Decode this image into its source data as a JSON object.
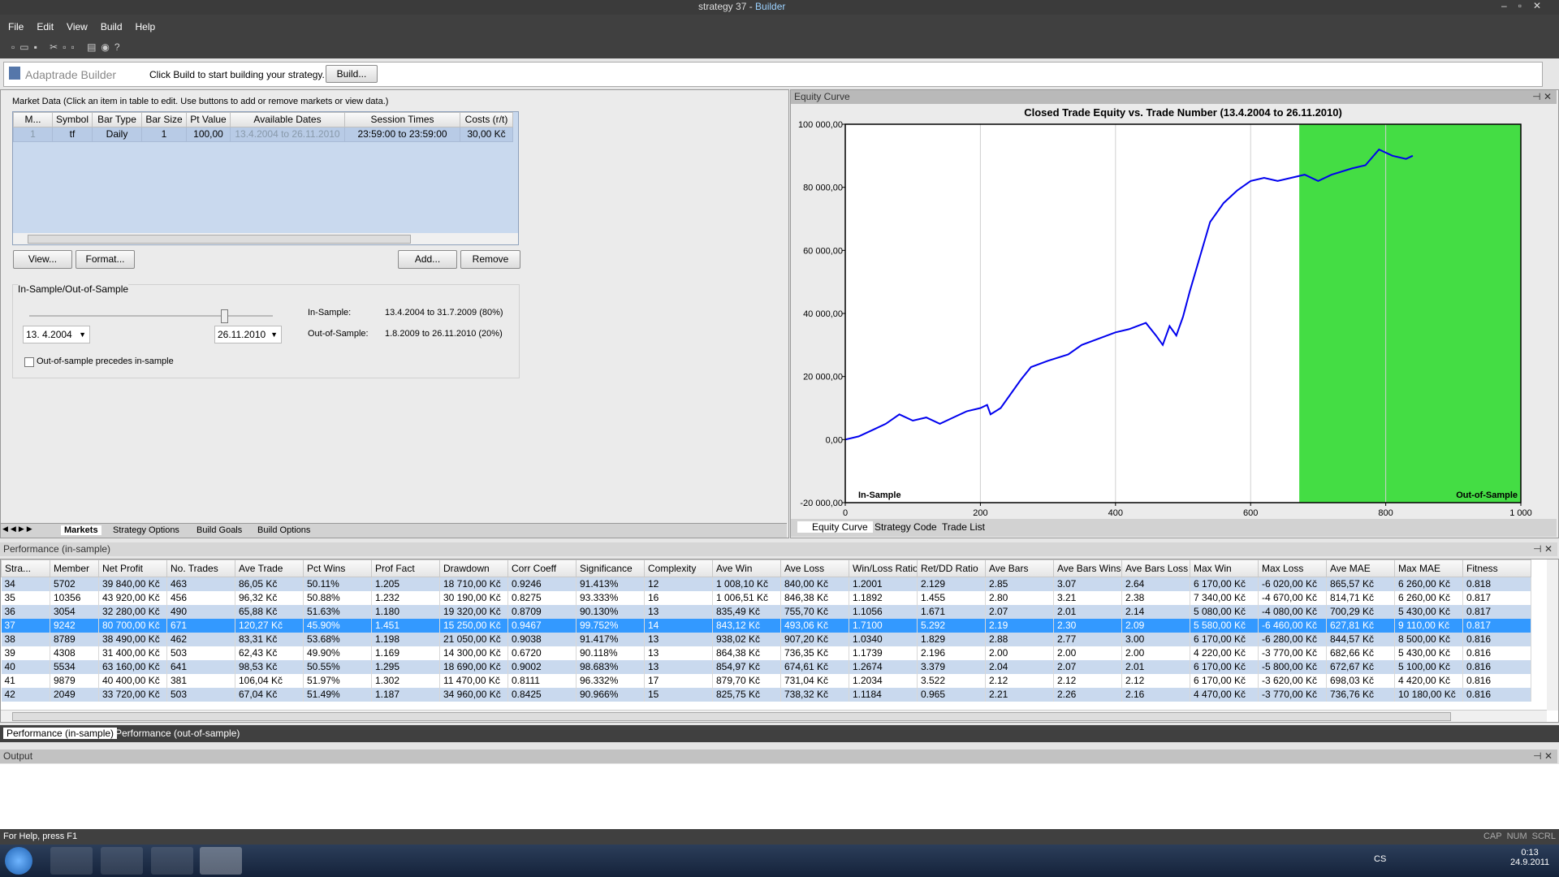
{
  "window": {
    "title": "strategy 37",
    "app": "Builder"
  },
  "menu": [
    "File",
    "Edit",
    "View",
    "Build",
    "Help"
  ],
  "toolbar": {
    "brand": "Adaptrade Builder",
    "hint": "Click Build to start building your strategy.",
    "button": "Build..."
  },
  "market": {
    "caption": "Market Data (Click an item in table to edit. Use buttons to add or remove markets or view data.)",
    "columns": [
      "M...",
      "Symbol",
      "Bar Type",
      "Bar Size",
      "Pt Value",
      "Available Dates",
      "Session Times",
      "Costs (r/t)"
    ],
    "rows": [
      [
        "1",
        "tf",
        "Daily",
        "1",
        "100,00",
        "13.4.2004 to 26.11.2010",
        "23:59:00 to 23:59:00",
        "30,00 Kč"
      ]
    ],
    "buttons": [
      "View...",
      "Format...",
      "Add...",
      "Remove"
    ]
  },
  "sample": {
    "title": "In-Sample/Out-of-Sample",
    "start": "13. 4.2004",
    "end": "26.11.2010",
    "in_label": "In-Sample:",
    "in_value": "13.4.2004 to 31.7.2009 (80%)",
    "out_label": "Out-of-Sample:",
    "out_value": "1.8.2009 to 26.11.2010 (20%)",
    "checkbox": "Out-of-sample precedes in-sample"
  },
  "left_tabs": [
    "Markets",
    "Strategy Options",
    "Build Goals",
    "Build Options"
  ],
  "chart_panel": {
    "title": "Equity Curve",
    "tabs": [
      "Equity Curve",
      "Strategy Code",
      "Trade List"
    ]
  },
  "chart_data": {
    "type": "line",
    "title": "Closed Trade Equity vs. Trade Number (13.4.2004 to 26.11.2010)",
    "x": [
      0,
      20,
      40,
      60,
      80,
      100,
      120,
      140,
      160,
      180,
      200,
      210,
      215,
      230,
      260,
      275,
      300,
      330,
      350,
      375,
      400,
      420,
      445,
      460,
      470,
      480,
      490,
      500,
      510,
      525,
      540,
      560,
      580,
      600,
      620,
      640,
      660,
      680,
      700,
      720,
      750,
      770,
      790,
      810,
      830,
      840
    ],
    "series": [
      {
        "color": "#0000ee",
        "values": [
          0,
          1000,
          3000,
          5000,
          8000,
          6000,
          7000,
          5000,
          7000,
          9000,
          10000,
          11000,
          8000,
          10000,
          19000,
          23000,
          25000,
          27000,
          30000,
          32000,
          34000,
          35000,
          37000,
          33000,
          30000,
          36000,
          33000,
          39000,
          47000,
          58000,
          69000,
          75000,
          79000,
          82000,
          83000,
          82000,
          83000,
          84000,
          82000,
          84000,
          86000,
          87000,
          92000,
          90000,
          89000,
          90000
        ]
      }
    ],
    "xlim": [
      0,
      1000
    ],
    "ylim": [
      -20000,
      100000
    ],
    "xticks": [
      0,
      200,
      400,
      600,
      800,
      {
        "value": 1000,
        "label": "1 000"
      }
    ],
    "yticks": [
      {
        "value": -20000,
        "label": "-20 000,00"
      },
      {
        "value": 0,
        "label": "0,00"
      },
      {
        "value": 20000,
        "label": "20 000,00"
      },
      {
        "value": 40000,
        "label": "40 000,00"
      },
      {
        "value": 60000,
        "label": "60 000,00"
      },
      {
        "value": 80000,
        "label": "80 000,00"
      },
      {
        "value": 100000,
        "label": "100 000,00"
      }
    ],
    "grid": "x",
    "out_of_sample_start": 672,
    "out_of_sample_color": "#44dd44",
    "annotations": [
      "In-Sample",
      "Out-of-Sample"
    ]
  },
  "performance": {
    "title": "Performance (in-sample)",
    "selected": 3,
    "columns": [
      "Stra...",
      "Member",
      "Net Profit",
      "No. Trades",
      "Ave Trade",
      "Pct Wins",
      "Prof Fact",
      "Drawdown",
      "Corr Coeff",
      "Significance",
      "Complexity",
      "Ave Win",
      "Ave Loss",
      "Win/Loss Ratio",
      "Ret/DD Ratio",
      "Ave Bars",
      "Ave Bars Wins",
      "Ave Bars Loss",
      "Max Win",
      "Max Loss",
      "Ave MAE",
      "Max MAE",
      "Fitness"
    ],
    "rows": [
      [
        "34",
        "5702",
        "39 840,00 Kč",
        "463",
        "86,05 Kč",
        "50.11%",
        "1.205",
        "18 710,00 Kč",
        "0.9246",
        "91.413%",
        "12",
        "1 008,10 Kč",
        "840,00 Kč",
        "1.2001",
        "2.129",
        "2.85",
        "3.07",
        "2.64",
        "6 170,00 Kč",
        "-6 020,00 Kč",
        "865,57 Kč",
        "6 260,00 Kč",
        "0.818"
      ],
      [
        "35",
        "10356",
        "43 920,00 Kč",
        "456",
        "96,32 Kč",
        "50.88%",
        "1.232",
        "30 190,00 Kč",
        "0.8275",
        "93.333%",
        "16",
        "1 006,51 Kč",
        "846,38 Kč",
        "1.1892",
        "1.455",
        "2.80",
        "3.21",
        "2.38",
        "7 340,00 Kč",
        "-4 670,00 Kč",
        "814,71 Kč",
        "6 260,00 Kč",
        "0.817"
      ],
      [
        "36",
        "3054",
        "32 280,00 Kč",
        "490",
        "65,88 Kč",
        "51.63%",
        "1.180",
        "19 320,00 Kč",
        "0.8709",
        "90.130%",
        "13",
        "835,49 Kč",
        "755,70 Kč",
        "1.1056",
        "1.671",
        "2.07",
        "2.01",
        "2.14",
        "5 080,00 Kč",
        "-4 080,00 Kč",
        "700,29 Kč",
        "5 430,00 Kč",
        "0.817"
      ],
      [
        "37",
        "9242",
        "80 700,00 Kč",
        "671",
        "120,27 Kč",
        "45.90%",
        "1.451",
        "15 250,00 Kč",
        "0.9467",
        "99.752%",
        "14",
        "843,12 Kč",
        "493,06 Kč",
        "1.7100",
        "5.292",
        "2.19",
        "2.30",
        "2.09",
        "5 580,00 Kč",
        "-6 460,00 Kč",
        "627,81 Kč",
        "9 110,00 Kč",
        "0.817"
      ],
      [
        "38",
        "8789",
        "38 490,00 Kč",
        "462",
        "83,31 Kč",
        "53.68%",
        "1.198",
        "21 050,00 Kč",
        "0.9038",
        "91.417%",
        "13",
        "938,02 Kč",
        "907,20 Kč",
        "1.0340",
        "1.829",
        "2.88",
        "2.77",
        "3.00",
        "6 170,00 Kč",
        "-6 280,00 Kč",
        "844,57 Kč",
        "8 500,00 Kč",
        "0.816"
      ],
      [
        "39",
        "4308",
        "31 400,00 Kč",
        "503",
        "62,43 Kč",
        "49.90%",
        "1.169",
        "14 300,00 Kč",
        "0.6720",
        "90.118%",
        "13",
        "864,38 Kč",
        "736,35 Kč",
        "1.1739",
        "2.196",
        "2.00",
        "2.00",
        "2.00",
        "4 220,00 Kč",
        "-3 770,00 Kč",
        "682,66 Kč",
        "5 430,00 Kč",
        "0.816"
      ],
      [
        "40",
        "5534",
        "63 160,00 Kč",
        "641",
        "98,53 Kč",
        "50.55%",
        "1.295",
        "18 690,00 Kč",
        "0.9002",
        "98.683%",
        "13",
        "854,97 Kč",
        "674,61 Kč",
        "1.2674",
        "3.379",
        "2.04",
        "2.07",
        "2.01",
        "6 170,00 Kč",
        "-5 800,00 Kč",
        "672,67 Kč",
        "5 100,00 Kč",
        "0.816"
      ],
      [
        "41",
        "9879",
        "40 400,00 Kč",
        "381",
        "106,04 Kč",
        "51.97%",
        "1.302",
        "11 470,00 Kč",
        "0.8111",
        "96.332%",
        "17",
        "879,70 Kč",
        "731,04 Kč",
        "1.2034",
        "3.522",
        "2.12",
        "2.12",
        "2.12",
        "6 170,00 Kč",
        "-3 620,00 Kč",
        "698,03 Kč",
        "4 420,00 Kč",
        "0.816"
      ],
      [
        "42",
        "2049",
        "33 720,00 Kč",
        "503",
        "67,04 Kč",
        "51.49%",
        "1.187",
        "34 960,00 Kč",
        "0.8425",
        "90.966%",
        "15",
        "825,75 Kč",
        "738,32 Kč",
        "1.1184",
        "0.965",
        "2.21",
        "2.26",
        "2.16",
        "4 470,00 Kč",
        "-3 770,00 Kč",
        "736,76 Kč",
        "10 180,00 Kč",
        "0.816"
      ]
    ],
    "tabs": [
      "Performance (in-sample)",
      "Performance (out-of-sample)"
    ]
  },
  "output": {
    "title": "Output"
  },
  "status": {
    "help": "For Help, press F1",
    "indicators": [
      "CAP",
      "NUM",
      "SCRL"
    ]
  },
  "taskbar": {
    "lang": "CS",
    "time": "0:13",
    "date": "24.9.2011"
  }
}
